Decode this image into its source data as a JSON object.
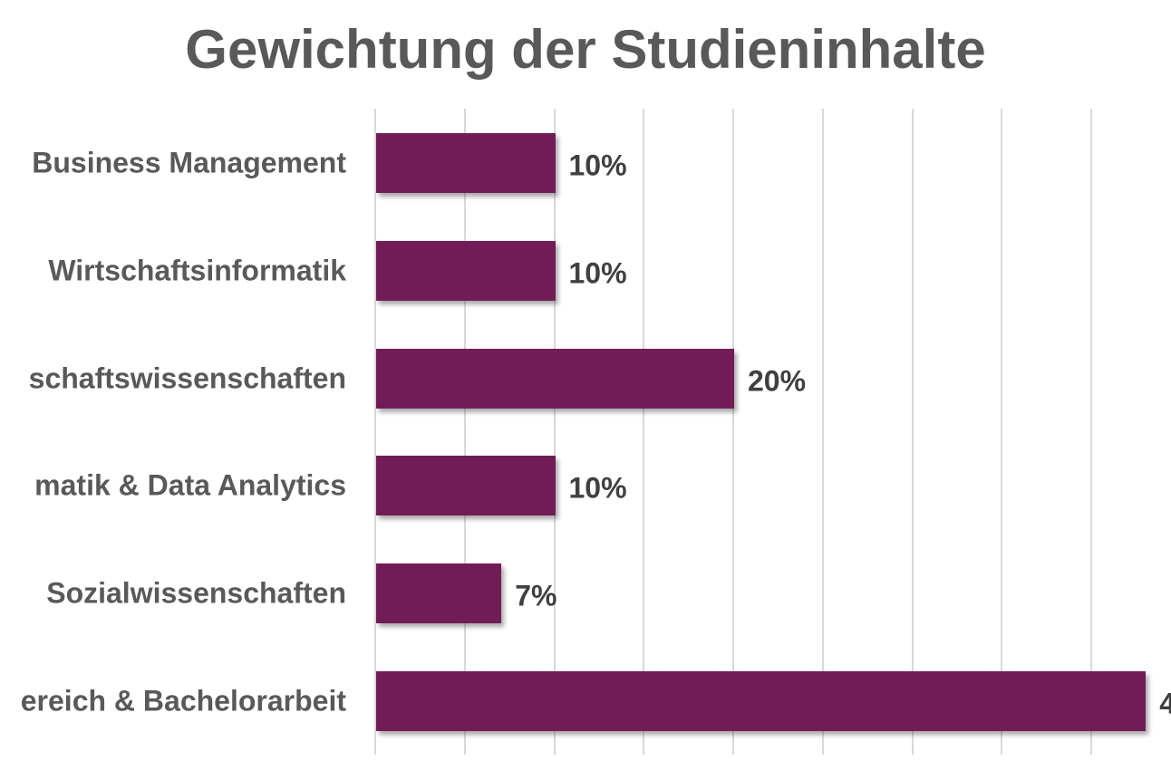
{
  "title": "Gewichtung der Studieninhalte",
  "colors": {
    "bar": "#721c57",
    "title": "#595959",
    "label": "#595959",
    "value": "#404040",
    "grid": "#d9d9d9"
  },
  "chart_data": {
    "type": "bar",
    "orientation": "horizontal",
    "title": "Gewichtung der Studieninhalte",
    "categories": [
      "Business Management",
      "Wirtschaftsinformatik",
      "schaftswissenschaften",
      "matik & Data Analytics",
      "Sozialwissenschaften",
      "ereich & Bachelorarbeit"
    ],
    "values": [
      10,
      10,
      20,
      10,
      7,
      43
    ],
    "value_labels": [
      "10%",
      "10%",
      "20%",
      "10%",
      "7%",
      "4"
    ],
    "xlabel": "",
    "ylabel": "",
    "xlim": [
      0,
      45
    ],
    "grid": true,
    "grid_step": 5,
    "legend": "none",
    "note": "Category labels on the left and the last value label on the right are cropped by the image edge"
  }
}
